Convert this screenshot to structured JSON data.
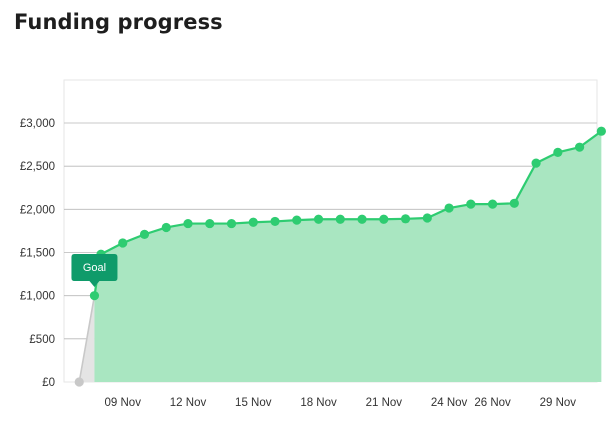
{
  "header": {
    "title": "Funding progress"
  },
  "chart_data": {
    "type": "area",
    "title": "Funding progress",
    "xlabel": "",
    "ylabel": "",
    "ylim": [
      0,
      3000
    ],
    "y_ticks": [
      {
        "value": 0,
        "label": "£0"
      },
      {
        "value": 500,
        "label": "£500"
      },
      {
        "value": 1000,
        "label": "£1,000"
      },
      {
        "value": 1500,
        "label": "£1,500"
      },
      {
        "value": 2000,
        "label": "£2,000"
      },
      {
        "value": 2500,
        "label": "£2,500"
      },
      {
        "value": 3000,
        "label": "£3,000"
      }
    ],
    "x_ticks": [
      {
        "day": 9,
        "label": "09 Nov"
      },
      {
        "day": 12,
        "label": "12 Nov"
      },
      {
        "day": 15,
        "label": "15 Nov"
      },
      {
        "day": 18,
        "label": "18 Nov"
      },
      {
        "day": 21,
        "label": "21 Nov"
      },
      {
        "day": 24,
        "label": "24 Nov"
      },
      {
        "day": 26,
        "label": "26 Nov"
      },
      {
        "day": 29,
        "label": "29 Nov"
      }
    ],
    "x_range": [
      6.3,
      30.8
    ],
    "goal": {
      "label": "Goal",
      "value": 1000
    },
    "start_point": {
      "day": 7,
      "value": 0
    },
    "series": [
      {
        "color": "#2ecc71",
        "fill": "#a9e6c1",
        "points": [
          {
            "day": 7.7,
            "value": 1000
          },
          {
            "day": 8,
            "value": 1480
          },
          {
            "day": 9,
            "value": 1610
          },
          {
            "day": 10,
            "value": 1710
          },
          {
            "day": 11,
            "value": 1790
          },
          {
            "day": 12,
            "value": 1835
          },
          {
            "day": 13,
            "value": 1835
          },
          {
            "day": 14,
            "value": 1835
          },
          {
            "day": 15,
            "value": 1850
          },
          {
            "day": 16,
            "value": 1860
          },
          {
            "day": 17,
            "value": 1875
          },
          {
            "day": 18,
            "value": 1885
          },
          {
            "day": 19,
            "value": 1885
          },
          {
            "day": 20,
            "value": 1885
          },
          {
            "day": 21,
            "value": 1885
          },
          {
            "day": 22,
            "value": 1890
          },
          {
            "day": 23,
            "value": 1900
          },
          {
            "day": 24,
            "value": 2015
          },
          {
            "day": 25,
            "value": 2060
          },
          {
            "day": 26,
            "value": 2060
          },
          {
            "day": 27,
            "value": 2070
          },
          {
            "day": 28,
            "value": 2535
          },
          {
            "day": 29,
            "value": 2660
          },
          {
            "day": 30,
            "value": 2720
          },
          {
            "day": 31,
            "value": 2905
          }
        ]
      }
    ],
    "colors": {
      "line": "#2ecc71",
      "area": "#a9e6c1",
      "pre_goal_area": "#e4e4e4",
      "start_marker": "#c8c8c8",
      "goal_badge": "#0f9b6a",
      "goal_tick_label": "#0f9b6a",
      "grid": "#b8b8b8",
      "plot_border": "#e6e6e6"
    },
    "grid": true,
    "legend": "none"
  }
}
